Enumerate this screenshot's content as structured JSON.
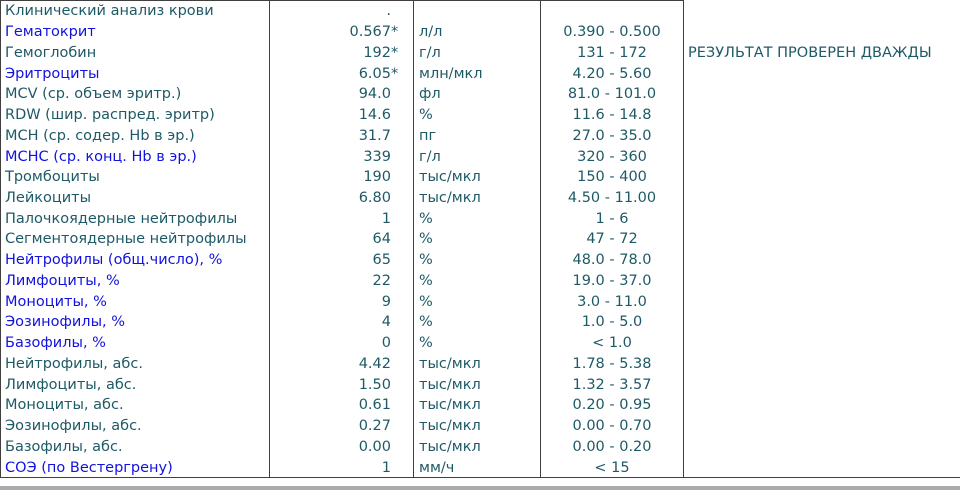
{
  "colors": {
    "teal": "#1E5A66",
    "blue": "#1212DF",
    "border": "#3F3F3F",
    "bottom_strip": "#ABABAB"
  },
  "comment": "РЕЗУЛЬТАТ ПРОВЕРЕН ДВАЖДЫ",
  "table": {
    "rows": [
      {
        "name": "Клинический анализ крови",
        "color": "teal",
        "value": ".",
        "flag": "",
        "unit": "",
        "range": ""
      },
      {
        "name": "Гематокрит",
        "color": "blue",
        "value": "0.567",
        "flag": "*",
        "unit": "л/л",
        "range": "0.390 - 0.500"
      },
      {
        "name": "Гемоглобин",
        "color": "teal",
        "value": "192",
        "flag": "*",
        "unit": "г/л",
        "range": "131 - 172"
      },
      {
        "name": "Эритроциты",
        "color": "blue",
        "value": "6.05",
        "flag": "*",
        "unit": "млн/мкл",
        "range": "4.20 - 5.60"
      },
      {
        "name": "MCV (ср. объем эритр.)",
        "color": "teal",
        "value": "94.0",
        "flag": "",
        "unit": "фл",
        "range": "81.0 - 101.0"
      },
      {
        "name": "RDW (шир. распред. эритр)",
        "color": "teal",
        "value": "14.6",
        "flag": "",
        "unit": "%",
        "range": "11.6 - 14.8"
      },
      {
        "name": "MCH (ср. содер. Hb в эр.)",
        "color": "teal",
        "value": "31.7",
        "flag": "",
        "unit": "пг",
        "range": "27.0 - 35.0"
      },
      {
        "name": "MCHC (ср. конц. Hb в эр.)",
        "color": "blue",
        "value": "339",
        "flag": "",
        "unit": "г/л",
        "range": "320 - 360"
      },
      {
        "name": "Тромбоциты",
        "color": "teal",
        "value": "190",
        "flag": "",
        "unit": "тыс/мкл",
        "range": "150 - 400"
      },
      {
        "name": "Лейкоциты",
        "color": "teal",
        "value": "6.80",
        "flag": "",
        "unit": "тыс/мкл",
        "range": "4.50 - 11.00"
      },
      {
        "name": "Палочкоядерные нейтрофилы",
        "color": "teal",
        "value": "1",
        "flag": "",
        "unit": "%",
        "range": "1 - 6"
      },
      {
        "name": "Сегментоядерные нейтрофилы",
        "color": "teal",
        "value": "64",
        "flag": "",
        "unit": "%",
        "range": "47 - 72"
      },
      {
        "name": "Нейтрофилы (общ.число), %",
        "color": "blue",
        "value": "65",
        "flag": "",
        "unit": "%",
        "range": "48.0 - 78.0"
      },
      {
        "name": "Лимфоциты, %",
        "color": "blue",
        "value": "22",
        "flag": "",
        "unit": "%",
        "range": "19.0 - 37.0"
      },
      {
        "name": "Моноциты, %",
        "color": "blue",
        "value": "9",
        "flag": "",
        "unit": "%",
        "range": "3.0 - 11.0"
      },
      {
        "name": "Эозинофилы, %",
        "color": "blue",
        "value": "4",
        "flag": "",
        "unit": "%",
        "range": "1.0 - 5.0"
      },
      {
        "name": "Базофилы, %",
        "color": "blue",
        "value": "0",
        "flag": "",
        "unit": "%",
        "range": "< 1.0"
      },
      {
        "name": "Нейтрофилы, абс.",
        "color": "teal",
        "value": "4.42",
        "flag": "",
        "unit": "тыс/мкл",
        "range": "1.78 - 5.38"
      },
      {
        "name": "Лимфоциты, абс.",
        "color": "teal",
        "value": "1.50",
        "flag": "",
        "unit": "тыс/мкл",
        "range": "1.32 - 3.57"
      },
      {
        "name": "Моноциты, абс.",
        "color": "teal",
        "value": "0.61",
        "flag": "",
        "unit": "тыс/мкл",
        "range": "0.20 - 0.95"
      },
      {
        "name": "Эозинофилы, абс.",
        "color": "teal",
        "value": "0.27",
        "flag": "",
        "unit": "тыс/мкл",
        "range": "0.00 - 0.70"
      },
      {
        "name": "Базофилы, абс.",
        "color": "teal",
        "value": "0.00",
        "flag": "",
        "unit": "тыс/мкл",
        "range": "0.00 - 0.20"
      },
      {
        "name": "СОЭ (по Вестергрену)",
        "color": "blue",
        "value": "1",
        "flag": "",
        "unit": "мм/ч",
        "range": "< 15"
      }
    ]
  }
}
